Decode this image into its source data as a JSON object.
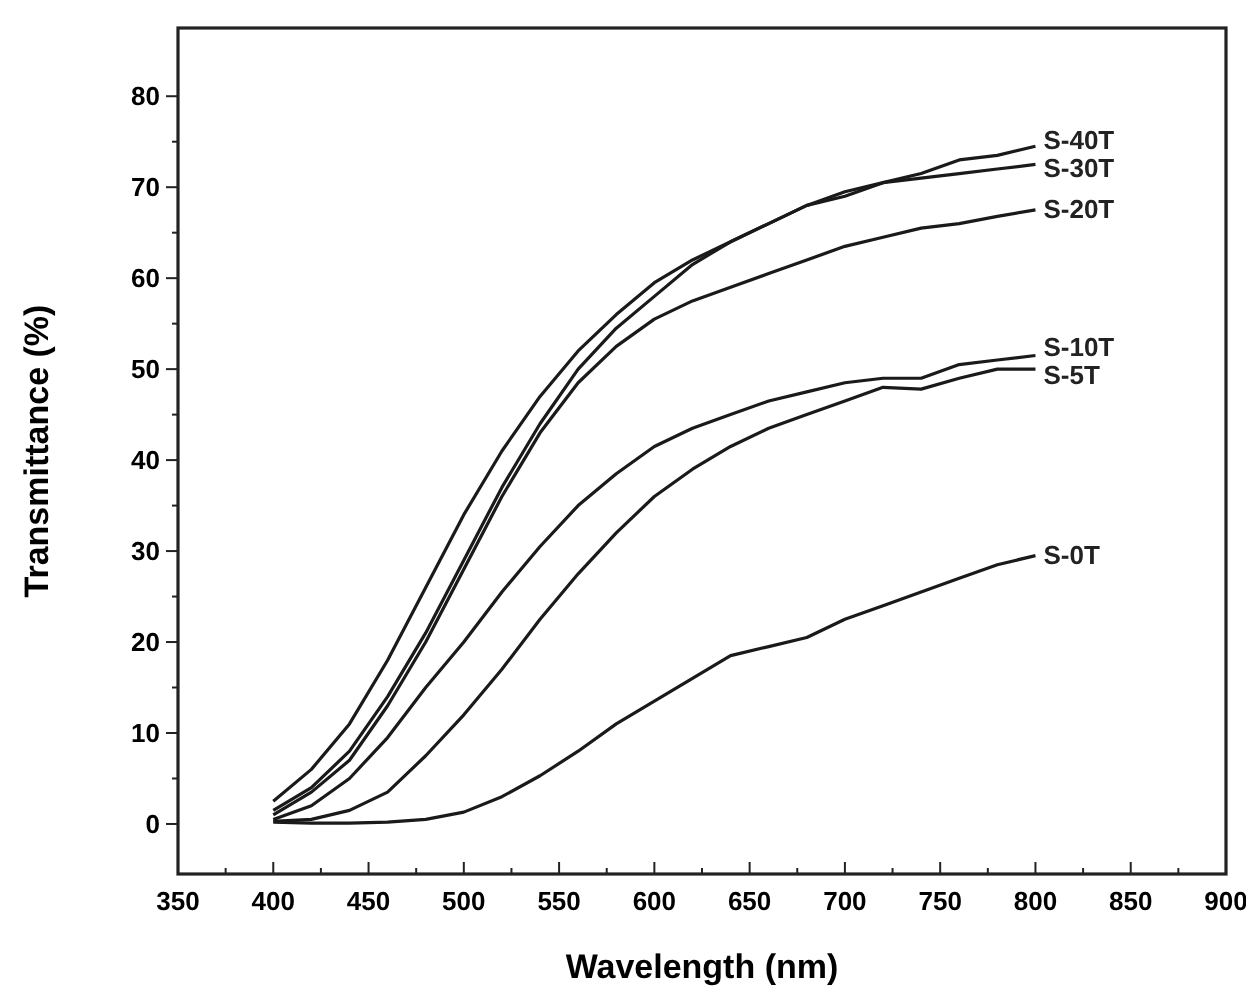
{
  "chart_data": {
    "type": "line",
    "xlabel": "Wavelength (nm)",
    "ylabel": "Transmittance (%)",
    "x": [
      400,
      420,
      440,
      460,
      480,
      500,
      520,
      540,
      560,
      580,
      600,
      620,
      640,
      660,
      680,
      700,
      720,
      740,
      760,
      780,
      800
    ],
    "xlim": [
      350,
      900
    ],
    "ylim": [
      -5.5,
      87.5
    ],
    "xticks": [
      350,
      {
        "value": 375,
        "label": null
      },
      400,
      {
        "value": 425,
        "label": null
      },
      450,
      {
        "value": 475,
        "label": null
      },
      500,
      {
        "value": 525,
        "label": null
      },
      550,
      {
        "value": 575,
        "label": null
      },
      600,
      {
        "value": 625,
        "label": null
      },
      650,
      {
        "value": 675,
        "label": null
      },
      700,
      {
        "value": 725,
        "label": null
      },
      750,
      {
        "value": 775,
        "label": null
      },
      800,
      {
        "value": 825,
        "label": null
      },
      850,
      {
        "value": 875,
        "label": null
      },
      900
    ],
    "yticks": [
      0,
      {
        "value": 5,
        "label": null
      },
      10,
      {
        "value": 15,
        "label": null
      },
      20,
      {
        "value": 25,
        "label": null
      },
      30,
      {
        "value": 35,
        "label": null
      },
      40,
      {
        "value": 45,
        "label": null
      },
      50,
      {
        "value": 55,
        "label": null
      },
      60,
      {
        "value": 65,
        "label": null
      },
      70,
      {
        "value": 75,
        "label": null
      },
      80
    ],
    "grid": false,
    "marker": "none",
    "line_style": "solid",
    "series": [
      {
        "name": "S-40T",
        "color": "#1a1a1a",
        "values": [
          2.5,
          6,
          11,
          18,
          26,
          34,
          41,
          47,
          52,
          56,
          59.5,
          62,
          64,
          66,
          68,
          69,
          70.5,
          71.5,
          73,
          73.5,
          74.5
        ]
      },
      {
        "name": "S-30T",
        "color": "#1a1a1a",
        "values": [
          1.5,
          4,
          8,
          14,
          21,
          29,
          37,
          44,
          50,
          54.5,
          58,
          61.5,
          64,
          66,
          68,
          69.5,
          70.5,
          71,
          71.5,
          72,
          72.5
        ]
      },
      {
        "name": "S-20T",
        "color": "#1a1a1a",
        "values": [
          1,
          3.5,
          7,
          13,
          20,
          28,
          36,
          43,
          48.5,
          52.5,
          55.5,
          57.5,
          59,
          60.5,
          62,
          63.5,
          64.5,
          65.5,
          66,
          66.8,
          67.5
        ]
      },
      {
        "name": "S-10T",
        "color": "#1a1a1a",
        "values": [
          0.5,
          2,
          5,
          9.5,
          15,
          20,
          25.5,
          30.5,
          35,
          38.5,
          41.5,
          43.5,
          45,
          46.5,
          47.5,
          48.5,
          49,
          49,
          50.5,
          51,
          51.5
        ]
      },
      {
        "name": "S-5T",
        "color": "#1a1a1a",
        "values": [
          0.3,
          0.5,
          1.5,
          3.5,
          7.5,
          12,
          17,
          22.5,
          27.5,
          32,
          36,
          39,
          41.5,
          43.5,
          45,
          46.5,
          48,
          47.8,
          49,
          50,
          50
        ]
      },
      {
        "name": "S-0T",
        "color": "#1a1a1a",
        "values": [
          0.2,
          0.1,
          0.1,
          0.2,
          0.5,
          1.3,
          3,
          5.3,
          8,
          11,
          13.5,
          16,
          18.5,
          19.5,
          20.5,
          22.5,
          24,
          25.5,
          27,
          28.5,
          29.5
        ]
      }
    ]
  }
}
